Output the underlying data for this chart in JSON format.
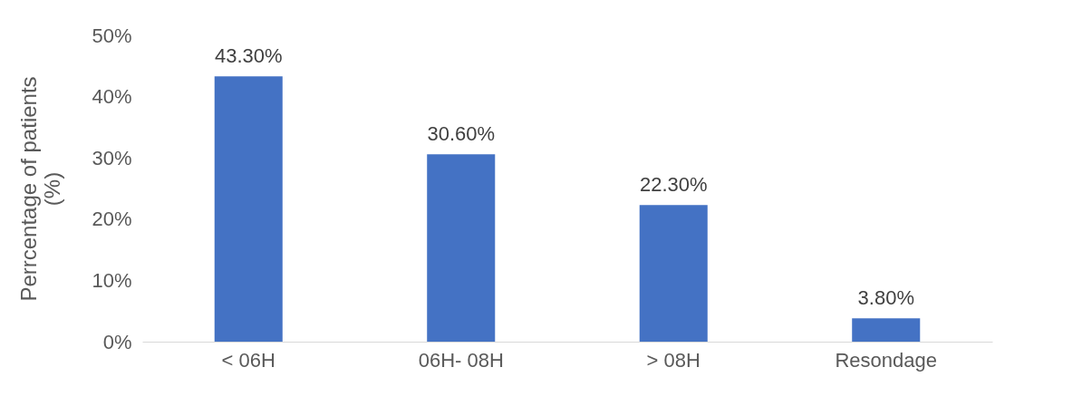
{
  "chart_data": {
    "type": "bar",
    "ylabel": "Perrcentage of patients (%)",
    "categories": [
      "< 06H",
      "06H- 08H",
      "> 08H",
      "Resondage"
    ],
    "values": [
      43.3,
      30.6,
      22.3,
      3.8
    ],
    "value_labels": [
      "43.30%",
      "30.60%",
      "22.30%",
      "3.80%"
    ],
    "color": "#4472c4",
    "ylim": [
      0,
      50
    ],
    "yticks": [
      {
        "value": 0,
        "label": "0%"
      },
      {
        "value": 10,
        "label": "10%"
      },
      {
        "value": 20,
        "label": "20%"
      },
      {
        "value": 30,
        "label": "30%"
      },
      {
        "value": 40,
        "label": "40%"
      },
      {
        "value": 50,
        "label": "50%"
      }
    ],
    "grid": false
  }
}
